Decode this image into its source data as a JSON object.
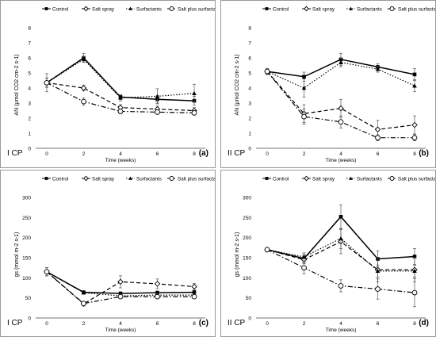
{
  "legend_style": {
    "colors": {
      "series": "#000000",
      "error_bar": "#555555",
      "open_fill": "#ffffff",
      "frame": "#9a9a9a"
    },
    "markers": [
      "filled-square",
      "open-diamond",
      "filled-triangle",
      "open-circle"
    ],
    "line_styles": [
      "solid",
      "dashed",
      "dotted",
      "dash-dot"
    ]
  },
  "chart_data": [
    {
      "type": "line",
      "panel_label": "(a)",
      "corner_label": "I CP",
      "ylabel": "AN (μmol CO2 cm-2 s-1)",
      "xlabel": "Time (weeks)",
      "x": [
        0,
        2,
        4,
        6,
        8
      ],
      "xticks": [
        "0",
        "2",
        "4",
        "6",
        "8"
      ],
      "ylim": [
        0,
        8
      ],
      "yticks": [
        "0",
        "1",
        "2",
        "3",
        "4",
        "5",
        "6",
        "7",
        "8"
      ],
      "legend_placement": "top",
      "grid": false,
      "series": [
        {
          "name": "Control",
          "values": [
            4.35,
            6.0,
            3.4,
            3.25,
            3.15
          ],
          "errors": [
            0.6,
            0.3,
            0.15,
            0.25,
            0.3
          ]
        },
        {
          "name": "Salt spray",
          "values": [
            4.35,
            4.0,
            2.7,
            2.6,
            2.5
          ],
          "errors": [
            0.3,
            0.2,
            0.2,
            0.2,
            0.2
          ]
        },
        {
          "name": "Surfactants",
          "values": [
            4.35,
            5.9,
            3.35,
            3.45,
            3.65
          ],
          "errors": [
            0.3,
            0.2,
            0.2,
            0.5,
            0.6
          ]
        },
        {
          "name": "Salt plus surfactants",
          "values": [
            4.35,
            3.1,
            2.45,
            2.4,
            2.35
          ],
          "errors": [
            0.3,
            0.25,
            0.15,
            0.15,
            0.15
          ]
        }
      ]
    },
    {
      "type": "line",
      "panel_label": "(b)",
      "corner_label": "II CP",
      "ylabel": "AN (μmol CO2 cm-2 s-1)",
      "xlabel": "Time (weeks)",
      "x": [
        0,
        2,
        4,
        6,
        8
      ],
      "xticks": [
        "0",
        "2",
        "4",
        "6",
        "8"
      ],
      "ylim": [
        0,
        8
      ],
      "yticks": [
        "0",
        "1",
        "2",
        "3",
        "4",
        "5",
        "6",
        "7",
        "8"
      ],
      "legend_placement": "top",
      "grid": false,
      "series": [
        {
          "name": "Control",
          "values": [
            5.1,
            4.75,
            5.9,
            5.4,
            4.9
          ],
          "errors": [
            0.15,
            0.3,
            0.4,
            0.2,
            0.4
          ]
        },
        {
          "name": "Salt spray",
          "values": [
            5.1,
            2.3,
            2.65,
            1.25,
            1.55
          ],
          "errors": [
            0.2,
            0.6,
            0.6,
            0.6,
            0.6
          ]
        },
        {
          "name": "Surfactants",
          "values": [
            5.1,
            4.0,
            5.7,
            5.25,
            4.15
          ],
          "errors": [
            0.15,
            0.6,
            0.3,
            0.2,
            0.4
          ]
        },
        {
          "name": "Salt plus surfactants",
          "values": [
            5.1,
            2.1,
            1.75,
            0.7,
            0.7
          ],
          "errors": [
            0.2,
            0.5,
            0.4,
            0.2,
            0.2
          ]
        }
      ]
    },
    {
      "type": "line",
      "panel_label": "(c)",
      "corner_label": "I CP",
      "ylabel": "gs (mmol m-2 s-1)",
      "xlabel": "Time (weeks)",
      "x": [
        0,
        2,
        4,
        6,
        8
      ],
      "xticks": [
        "0",
        "2",
        "4",
        "6",
        "8"
      ],
      "ylim": [
        0,
        300
      ],
      "yticks": [
        "0",
        "50",
        "100",
        "150",
        "200",
        "250",
        "300"
      ],
      "legend_placement": "top",
      "grid": false,
      "series": [
        {
          "name": "Control",
          "values": [
            115,
            64,
            61,
            63,
            64
          ],
          "errors": [
            10,
            4,
            4,
            4,
            4
          ]
        },
        {
          "name": "Salt spray",
          "values": [
            115,
            35,
            90,
            85,
            78
          ],
          "errors": [
            10,
            5,
            15,
            12,
            8
          ]
        },
        {
          "name": "Surfactants",
          "values": [
            115,
            63,
            55,
            57,
            57
          ],
          "errors": [
            10,
            4,
            4,
            4,
            4
          ]
        },
        {
          "name": "Salt plus surfactants",
          "values": [
            115,
            36,
            53,
            53,
            53
          ],
          "errors": [
            10,
            4,
            4,
            4,
            4
          ]
        }
      ]
    },
    {
      "type": "line",
      "panel_label": "(d)",
      "corner_label": "II CP",
      "ylabel": "gs (mmol m-2 s-1)",
      "xlabel": "Time (weeks)",
      "x": [
        0,
        2,
        4,
        6,
        8
      ],
      "xticks": [
        "0",
        "2",
        "4",
        "6",
        "8"
      ],
      "ylim": [
        0,
        300
      ],
      "yticks": [
        "0",
        "50",
        "100",
        "150",
        "200",
        "250",
        "300"
      ],
      "legend_placement": "top",
      "grid": false,
      "series": [
        {
          "name": "Control",
          "values": [
            170,
            148,
            252,
            147,
            153
          ],
          "errors": [
            5,
            10,
            30,
            20,
            20
          ]
        },
        {
          "name": "Salt spray",
          "values": [
            170,
            145,
            190,
            120,
            120
          ],
          "errors": [
            5,
            10,
            30,
            30,
            30
          ]
        },
        {
          "name": "Surfactants",
          "values": [
            170,
            152,
            198,
            117,
            117
          ],
          "errors": [
            5,
            10,
            25,
            15,
            15
          ]
        },
        {
          "name": "Salt plus surfactants",
          "values": [
            170,
            125,
            80,
            72,
            63
          ],
          "errors": [
            5,
            15,
            15,
            25,
            35
          ]
        }
      ]
    }
  ]
}
